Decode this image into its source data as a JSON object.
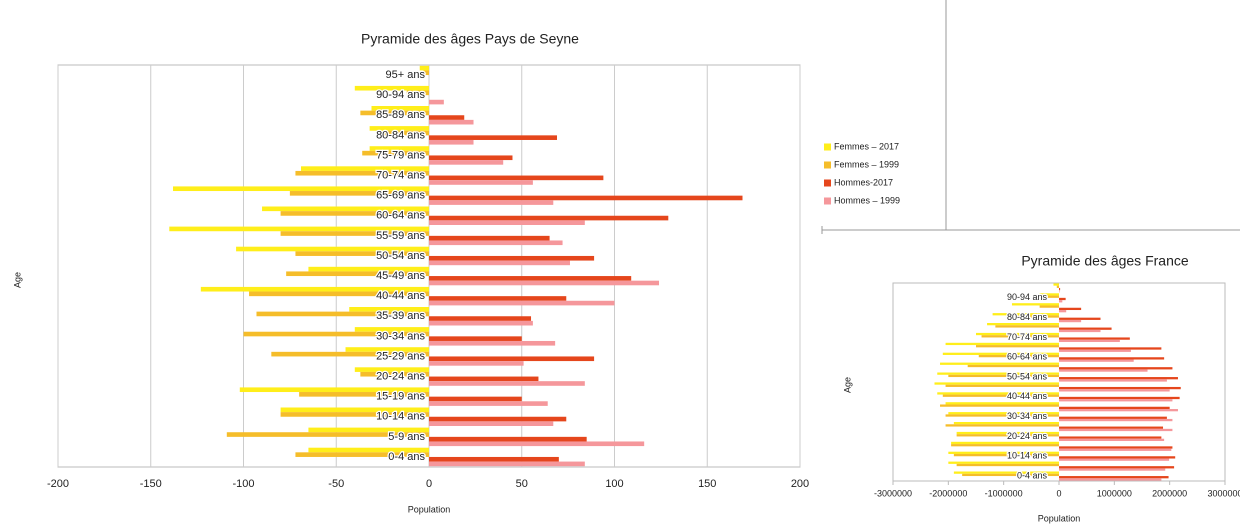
{
  "chart_data": [
    {
      "type": "bar",
      "orientation": "horizontal",
      "title": "Pyramide des âges Pays de Seyne",
      "x_label": "Population",
      "y_label": "Age",
      "categories": [
        "0-4 ans",
        "5-9 ans",
        "10-14 ans",
        "15-19 ans",
        "20-24 ans",
        "25-29 ans",
        "30-34 ans",
        "35-39 ans",
        "40-44 ans",
        "45-49 ans",
        "50-54 ans",
        "55-59 ans",
        "60-64 ans",
        "65-69 ans",
        "70-74 ans",
        "75-79 ans",
        "80-84 ans",
        "85-89 ans",
        "90-94 ans",
        "95+ ans"
      ],
      "series": [
        {
          "name": "Femmes – 2017",
          "color": "#ffee1a",
          "values": [
            -65,
            -65,
            -80,
            -102,
            -40,
            -45,
            -40,
            -43,
            -123,
            -65,
            -104,
            -140,
            -90,
            -138,
            -69,
            -32,
            -32,
            -31,
            -40,
            -5
          ]
        },
        {
          "name": "Femmes – 1999",
          "color": "#f5bd2a",
          "values": [
            -72,
            -109,
            -80,
            -70,
            -37,
            -85,
            -100,
            -93,
            -97,
            -77,
            -72,
            -80,
            -80,
            -75,
            -72,
            -36,
            -27,
            -37,
            -12,
            -3
          ]
        },
        {
          "name": "Hommes-2017",
          "color": "#e5461c",
          "values": [
            70,
            85,
            74,
            50,
            59,
            89,
            50,
            55,
            74,
            109,
            89,
            65,
            129,
            169,
            94,
            45,
            69,
            19,
            0,
            0
          ]
        },
        {
          "name": "Hommes – 1999",
          "color": "#f5979b",
          "values": [
            84,
            116,
            67,
            64,
            84,
            51,
            68,
            56,
            100,
            124,
            76,
            72,
            84,
            67,
            56,
            40,
            24,
            24,
            8,
            0
          ]
        }
      ],
      "xlim": [
        -200,
        200
      ],
      "xticks": [
        -200,
        -150,
        -100,
        -50,
        0,
        50,
        100,
        150,
        200
      ],
      "grid": true,
      "legend": "right"
    },
    {
      "type": "bar",
      "orientation": "horizontal",
      "title": "Pyramide des âges France",
      "x_label": "Population",
      "y_label": "Age",
      "categories": [
        "0-4 ans",
        null,
        "10-14 ans",
        null,
        "20-24 ans",
        null,
        "30-34 ans",
        null,
        "40-44 ans",
        null,
        "50-54 ans",
        null,
        "60-64 ans",
        null,
        "70-74 ans",
        null,
        "80-84 ans",
        null,
        "90-94 ans",
        null
      ],
      "series": [
        {
          "color": "#ffee1a",
          "values": [
            -1900000,
            -2000000,
            -2000000,
            -1950000,
            -1850000,
            -1900000,
            -2000000,
            -2050000,
            -2200000,
            -2250000,
            -2200000,
            -2150000,
            -2100000,
            -2050000,
            -1500000,
            -1300000,
            -1200000,
            -850000,
            -350000,
            -100000
          ]
        },
        {
          "color": "#f5bd2a",
          "values": [
            -1750000,
            -1850000,
            -1900000,
            -1950000,
            -1850000,
            -2050000,
            -2050000,
            -2150000,
            -2100000,
            -2050000,
            -2000000,
            -1650000,
            -1450000,
            -1500000,
            -1400000,
            -1150000,
            -800000,
            -350000,
            -250000,
            -40000
          ]
        },
        {
          "color": "#e5461c",
          "values": [
            1980000,
            2080000,
            2100000,
            2050000,
            1850000,
            1880000,
            1950000,
            2000000,
            2180000,
            2200000,
            2150000,
            2050000,
            1900000,
            1850000,
            1280000,
            950000,
            750000,
            400000,
            120000,
            20000
          ]
        },
        {
          "color": "#f5979b",
          "values": [
            1850000,
            1920000,
            1990000,
            2030000,
            1900000,
            2050000,
            2050000,
            2150000,
            2050000,
            2000000,
            1950000,
            1600000,
            1350000,
            1300000,
            1100000,
            750000,
            400000,
            130000,
            60000,
            10000
          ]
        }
      ],
      "xlim": [
        -3000000,
        3000000
      ],
      "xticks": [
        -3000000,
        -2000000,
        -1000000,
        0,
        1000000,
        2000000,
        3000000
      ],
      "grid": false
    }
  ]
}
